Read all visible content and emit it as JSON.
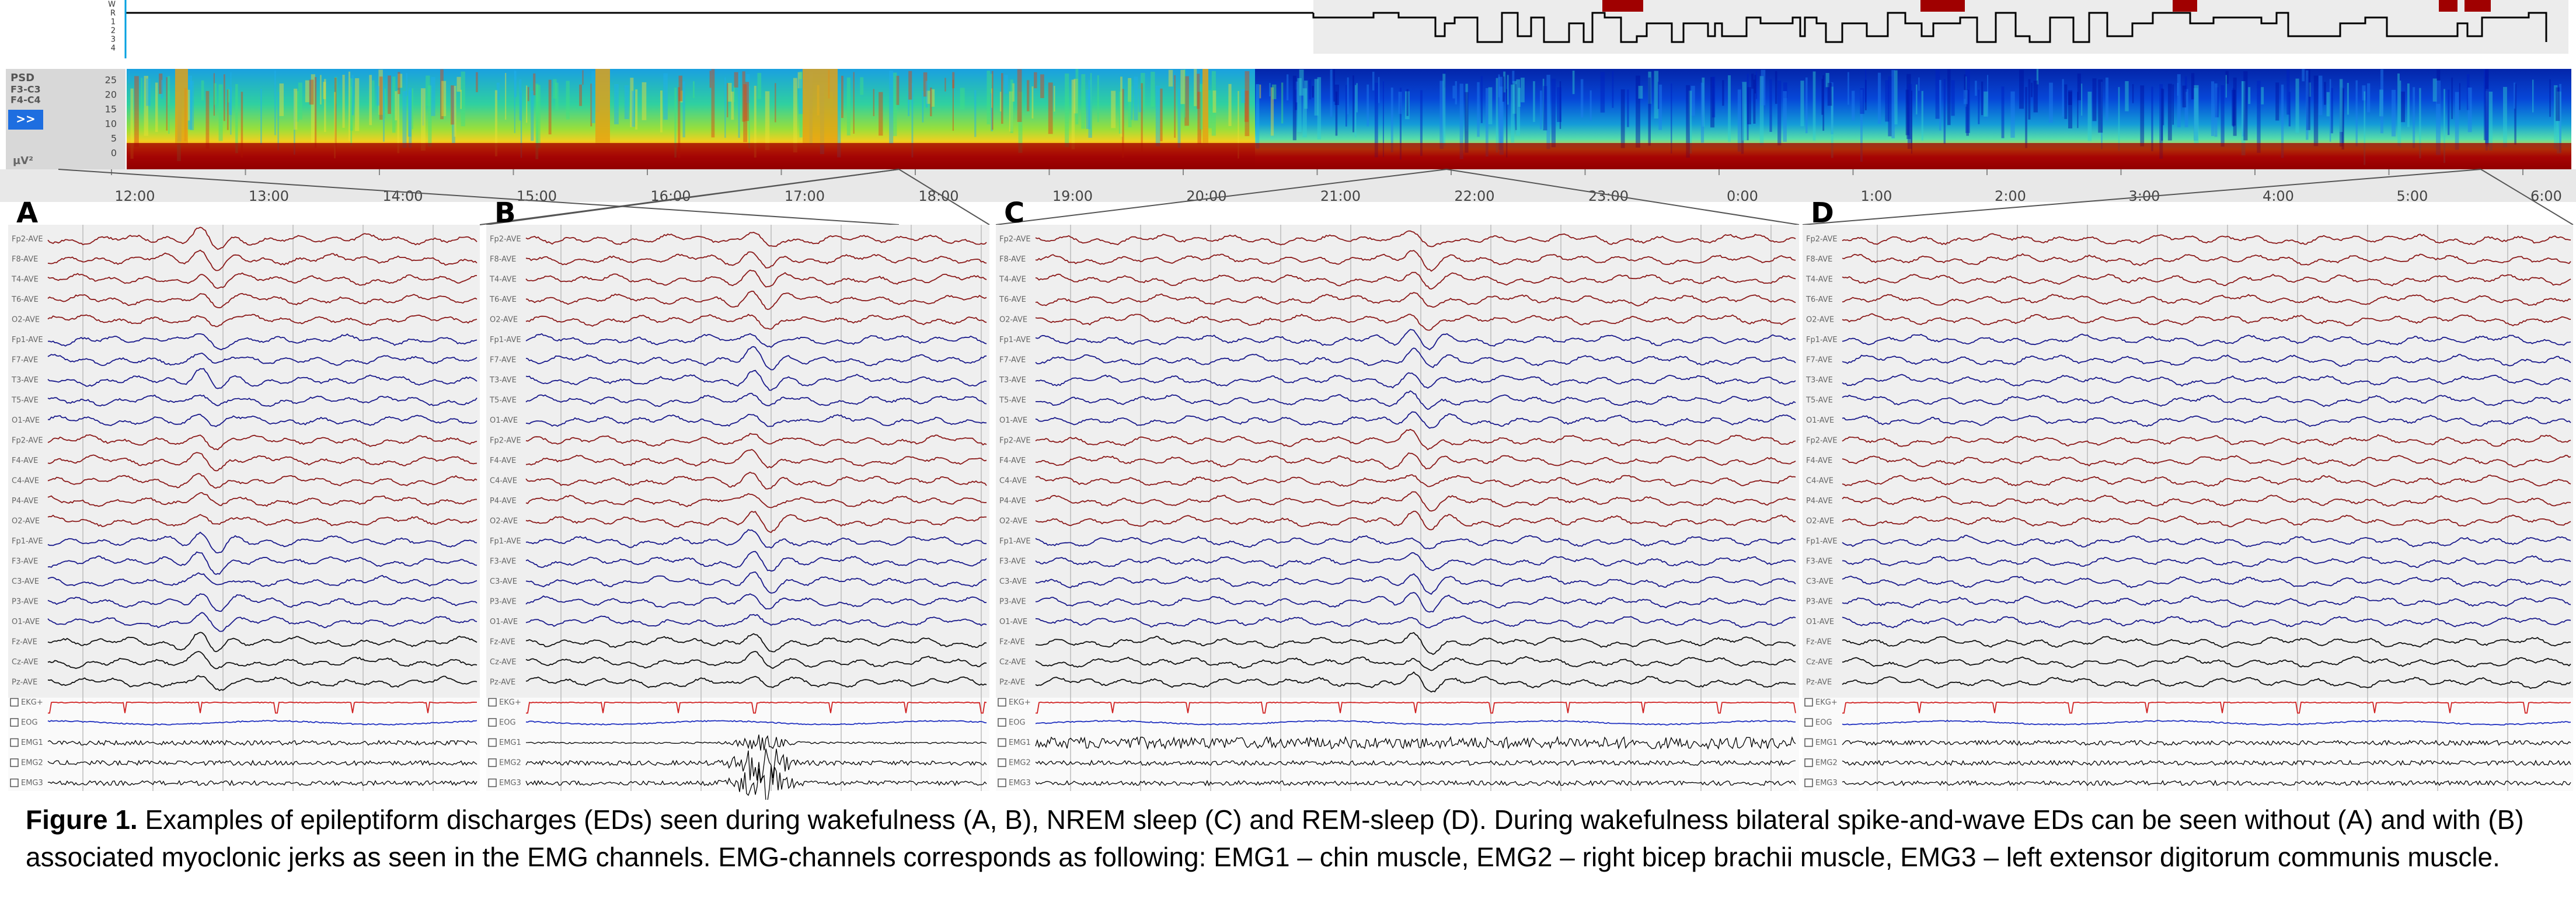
{
  "hypnogram": {
    "stage_labels": [
      "W",
      "R",
      "1",
      "2",
      "3",
      "4"
    ]
  },
  "spectrogram": {
    "side_labels": [
      "PSD",
      "F3-C3",
      "F4-C4"
    ],
    "button": ">>",
    "unit": "µV²",
    "freq_labels": [
      "25",
      "20",
      "15",
      "10",
      "5",
      "0"
    ],
    "time_labels": [
      "12:00",
      "13:00",
      "14:00",
      "15:00",
      "16:00",
      "17:00",
      "18:00",
      "19:00",
      "20:00",
      "21:00",
      "22:00",
      "23:00",
      "0:00",
      "1:00",
      "2:00",
      "3:00",
      "4:00",
      "5:00",
      "6:00"
    ]
  },
  "panels": [
    {
      "letter": "A",
      "channels": [
        "Fp2-AVE",
        "F8-AVE",
        "T4-AVE",
        "T6-AVE",
        "O2-AVE",
        "Fp1-AVE",
        "F7-AVE",
        "T3-AVE",
        "T5-AVE",
        "O1-AVE",
        "Fp2-AVE",
        "F4-AVE",
        "C4-AVE",
        "P4-AVE",
        "O2-AVE",
        "Fp1-AVE",
        "F3-AVE",
        "C3-AVE",
        "P3-AVE",
        "O1-AVE",
        "Fz-AVE",
        "Cz-AVE",
        "Pz-AVE",
        "EKG+",
        "EOG",
        "EMG1",
        "EMG2",
        "EMG3"
      ]
    },
    {
      "letter": "B",
      "channels": [
        "Fp2-AVE",
        "F8-AVE",
        "T4-AVE",
        "T6-AVE",
        "O2-AVE",
        "Fp1-AVE",
        "F7-AVE",
        "T3-AVE",
        "T5-AVE",
        "O1-AVE",
        "Fp2-AVE",
        "F4-AVE",
        "C4-AVE",
        "P4-AVE",
        "O2-AVE",
        "Fp1-AVE",
        "F3-AVE",
        "C3-AVE",
        "P3-AVE",
        "O1-AVE",
        "Fz-AVE",
        "Cz-AVE",
        "Pz-AVE",
        "EKG+",
        "EOG",
        "EMG1",
        "EMG2",
        "EMG3"
      ]
    },
    {
      "letter": "C",
      "channels": [
        "Fp2-AVE",
        "F8-AVE",
        "T4-AVE",
        "T6-AVE",
        "O2-AVE",
        "Fp1-AVE",
        "F7-AVE",
        "T3-AVE",
        "T5-AVE",
        "O1-AVE",
        "Fp2-AVE",
        "F4-AVE",
        "C4-AVE",
        "P4-AVE",
        "O2-AVE",
        "Fp1-AVE",
        "F3-AVE",
        "C3-AVE",
        "P3-AVE",
        "O1-AVE",
        "Fz-AVE",
        "Cz-AVE",
        "Pz-AVE",
        "EKG+",
        "EOG",
        "EMG1",
        "EMG2",
        "EMG3"
      ]
    },
    {
      "letter": "D",
      "channels": [
        "Fp2-AVE",
        "F8-AVE",
        "T4-AVE",
        "T6-AVE",
        "O2-AVE",
        "Fp1-AVE",
        "F7-AVE",
        "T3-AVE",
        "T5-AVE",
        "O1-AVE",
        "Fp2-AVE",
        "F4-AVE",
        "C4-AVE",
        "P4-AVE",
        "O2-AVE",
        "Fp1-AVE",
        "F3-AVE",
        "C3-AVE",
        "P3-AVE",
        "O1-AVE",
        "Fz-AVE",
        "Cz-AVE",
        "Pz-AVE",
        "EKG+",
        "EOG",
        "EMG1",
        "EMG2",
        "EMG3"
      ]
    }
  ],
  "caption": {
    "label": "Figure 1.",
    "text": "Examples of epileptiform discharges (EDs) seen during wakefulness (A, B), NREM sleep (C) and REM-sleep (D). During wakefulness bilateral spike-and-wave EDs can be seen without (A) and with (B) associated myoclonic jerks as seen in the EMG channels. EMG-channels corresponds as following: EMG1 – chin muscle, EMG2 – right bicep brachii muscle, EMG3 – left extensor digitorum communis muscle."
  }
}
